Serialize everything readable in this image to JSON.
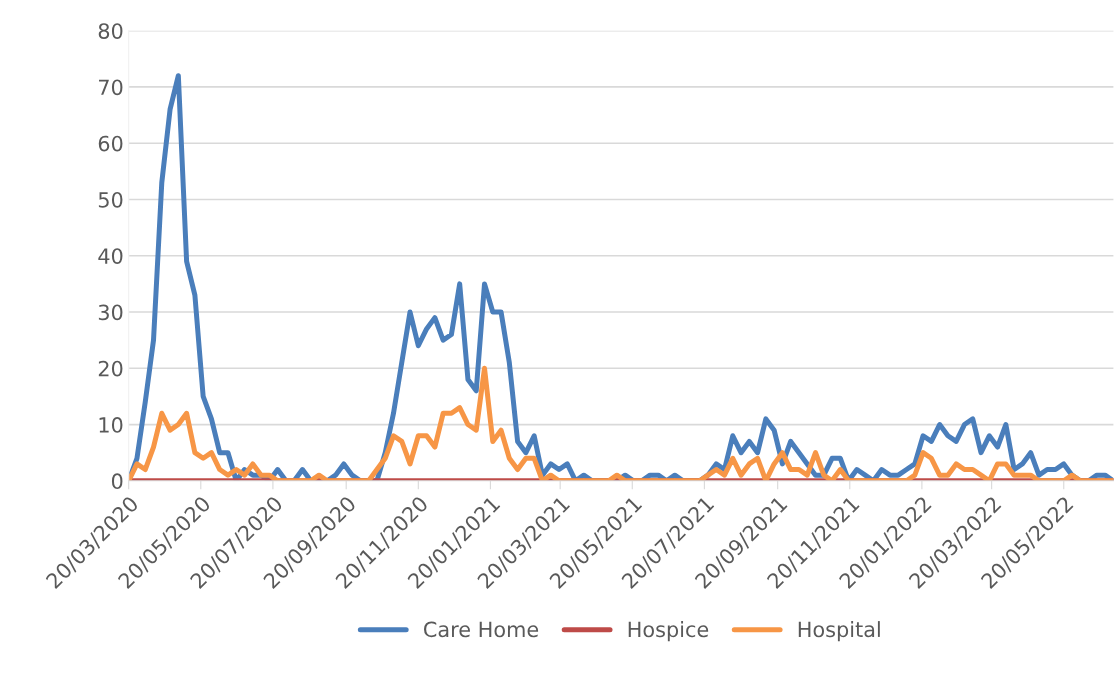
{
  "chart_data": {
    "type": "line",
    "x": [
      "2020-03-20",
      "2020-03-27",
      "2020-04-03",
      "2020-04-10",
      "2020-04-17",
      "2020-04-24",
      "2020-05-01",
      "2020-05-08",
      "2020-05-15",
      "2020-05-22",
      "2020-05-29",
      "2020-06-05",
      "2020-06-12",
      "2020-06-19",
      "2020-06-26",
      "2020-07-03",
      "2020-07-10",
      "2020-07-17",
      "2020-07-24",
      "2020-07-31",
      "2020-08-07",
      "2020-08-14",
      "2020-08-21",
      "2020-08-28",
      "2020-09-04",
      "2020-09-11",
      "2020-09-18",
      "2020-09-25",
      "2020-10-02",
      "2020-10-09",
      "2020-10-16",
      "2020-10-23",
      "2020-10-30",
      "2020-11-06",
      "2020-11-13",
      "2020-11-20",
      "2020-11-27",
      "2020-12-04",
      "2020-12-11",
      "2020-12-18",
      "2020-12-25",
      "2021-01-01",
      "2021-01-08",
      "2021-01-15",
      "2021-01-22",
      "2021-01-29",
      "2021-02-05",
      "2021-02-12",
      "2021-02-19",
      "2021-02-26",
      "2021-03-05",
      "2021-03-12",
      "2021-03-19",
      "2021-03-26",
      "2021-04-02",
      "2021-04-09",
      "2021-04-16",
      "2021-04-23",
      "2021-04-30",
      "2021-05-07",
      "2021-05-14",
      "2021-05-21",
      "2021-05-28",
      "2021-06-04",
      "2021-06-11",
      "2021-06-18",
      "2021-06-25",
      "2021-07-02",
      "2021-07-09",
      "2021-07-16",
      "2021-07-23",
      "2021-07-30",
      "2021-08-06",
      "2021-08-13",
      "2021-08-20",
      "2021-08-27",
      "2021-09-03",
      "2021-09-10",
      "2021-09-17",
      "2021-09-24",
      "2021-10-01",
      "2021-10-08",
      "2021-10-15",
      "2021-10-22",
      "2021-10-29",
      "2021-11-05",
      "2021-11-12",
      "2021-11-19",
      "2021-11-26",
      "2021-12-03",
      "2021-12-10",
      "2021-12-17",
      "2021-12-24",
      "2021-12-31",
      "2022-01-07",
      "2022-01-14",
      "2022-01-21",
      "2022-01-28",
      "2022-02-04",
      "2022-02-11",
      "2022-02-18",
      "2022-02-25",
      "2022-03-04",
      "2022-03-11",
      "2022-03-18",
      "2022-03-25",
      "2022-04-01",
      "2022-04-08",
      "2022-04-15",
      "2022-04-22",
      "2022-04-29",
      "2022-05-06",
      "2022-05-13",
      "2022-05-20",
      "2022-05-27",
      "2022-06-03",
      "2022-06-10",
      "2022-06-17",
      "2022-06-24",
      "2022-07-01"
    ],
    "series": [
      {
        "name": "Care Home",
        "color": "#4a7ebb",
        "values": [
          0,
          4,
          14,
          25,
          53,
          66,
          72,
          39,
          33,
          15,
          11,
          5,
          5,
          0,
          2,
          1,
          1,
          0,
          2,
          0,
          0,
          2,
          0,
          0,
          0,
          1,
          3,
          1,
          0,
          0,
          0,
          5,
          12,
          21,
          30,
          24,
          27,
          29,
          25,
          26,
          35,
          18,
          16,
          35,
          30,
          30,
          21,
          7,
          5,
          8,
          1,
          3,
          2,
          3,
          0,
          1,
          0,
          0,
          0,
          0,
          1,
          0,
          0,
          1,
          1,
          0,
          1,
          0,
          0,
          0,
          1,
          3,
          2,
          8,
          5,
          7,
          5,
          11,
          9,
          3,
          7,
          5,
          3,
          1,
          1,
          4,
          4,
          0,
          2,
          1,
          0,
          2,
          1,
          1,
          2,
          3,
          8,
          7,
          10,
          8,
          7,
          10,
          11,
          5,
          8,
          6,
          10,
          2,
          3,
          5,
          1,
          2,
          2,
          3,
          1,
          0,
          0,
          1,
          1,
          0
        ]
      },
      {
        "name": "Hospice",
        "color": "#be4b48",
        "values": [
          0,
          0,
          0,
          0,
          0,
          0,
          0,
          0,
          0,
          0,
          0,
          0,
          0,
          0,
          0,
          0,
          0,
          0,
          0,
          0,
          0,
          0,
          0,
          0,
          0,
          0,
          0,
          0,
          0,
          0,
          0,
          0,
          0,
          0,
          0,
          0,
          0,
          0,
          0,
          0,
          0,
          0,
          0,
          0,
          0,
          0,
          0,
          0,
          0,
          0,
          0,
          0,
          0,
          0,
          0,
          0,
          0,
          0,
          0,
          0,
          0,
          0,
          0,
          0,
          0,
          0,
          0,
          0,
          0,
          0,
          0,
          0,
          0,
          0,
          0,
          0,
          0,
          0,
          0,
          0,
          0,
          0,
          0,
          0,
          0,
          0,
          0,
          0,
          0,
          0,
          0,
          0,
          0,
          0,
          0,
          0,
          0,
          0,
          0,
          0,
          0,
          0,
          0,
          0,
          0,
          0,
          0,
          0,
          0,
          0,
          0,
          0,
          0,
          0,
          0,
          0,
          0,
          0,
          0,
          0
        ]
      },
      {
        "name": "Hospital",
        "color": "#f79646",
        "values": [
          0,
          3,
          2,
          6,
          12,
          9,
          10,
          12,
          5,
          4,
          5,
          2,
          1,
          2,
          1,
          3,
          1,
          1,
          0,
          0,
          0,
          0,
          0,
          1,
          0,
          0,
          0,
          0,
          0,
          0,
          2,
          4,
          8,
          7,
          3,
          8,
          8,
          6,
          12,
          12,
          13,
          10,
          9,
          20,
          7,
          9,
          4,
          2,
          4,
          4,
          0,
          1,
          0,
          0,
          0,
          0,
          0,
          0,
          0,
          1,
          0,
          0,
          0,
          0,
          0,
          0,
          0,
          0,
          0,
          0,
          1,
          2,
          1,
          4,
          1,
          3,
          4,
          0,
          3,
          5,
          2,
          2,
          1,
          5,
          1,
          0,
          2,
          0,
          0,
          0,
          0,
          0,
          0,
          0,
          0,
          1,
          5,
          4,
          1,
          1,
          3,
          2,
          2,
          1,
          0,
          3,
          3,
          1,
          1,
          1,
          0,
          0,
          0,
          0,
          1,
          0,
          0,
          0,
          0,
          0
        ]
      }
    ],
    "xlim": [
      "2020-03-20",
      "2022-07-01"
    ],
    "xticks": [
      {
        "value": "2020-03-20",
        "label": "20/03/2020"
      },
      {
        "value": "2020-05-20",
        "label": "20/05/2020"
      },
      {
        "value": "2020-07-20",
        "label": "20/07/2020"
      },
      {
        "value": "2020-09-20",
        "label": "20/09/2020"
      },
      {
        "value": "2020-11-20",
        "label": "20/11/2020"
      },
      {
        "value": "2021-01-20",
        "label": "20/01/2021"
      },
      {
        "value": "2021-03-20",
        "label": "20/03/2021"
      },
      {
        "value": "2021-05-20",
        "label": "20/05/2021"
      },
      {
        "value": "2021-07-20",
        "label": "20/07/2021"
      },
      {
        "value": "2021-09-20",
        "label": "20/09/2021"
      },
      {
        "value": "2021-11-20",
        "label": "20/11/2021"
      },
      {
        "value": "2022-01-20",
        "label": "20/01/2022"
      },
      {
        "value": "2022-03-20",
        "label": "20/03/2022"
      },
      {
        "value": "2022-05-20",
        "label": "20/05/2022"
      }
    ],
    "ylim": [
      0,
      80
    ],
    "yticks": [
      0,
      10,
      20,
      30,
      40,
      50,
      60,
      70,
      80
    ],
    "grid": "y",
    "legend": "bottom",
    "marker": "none",
    "line_style": "solid"
  }
}
